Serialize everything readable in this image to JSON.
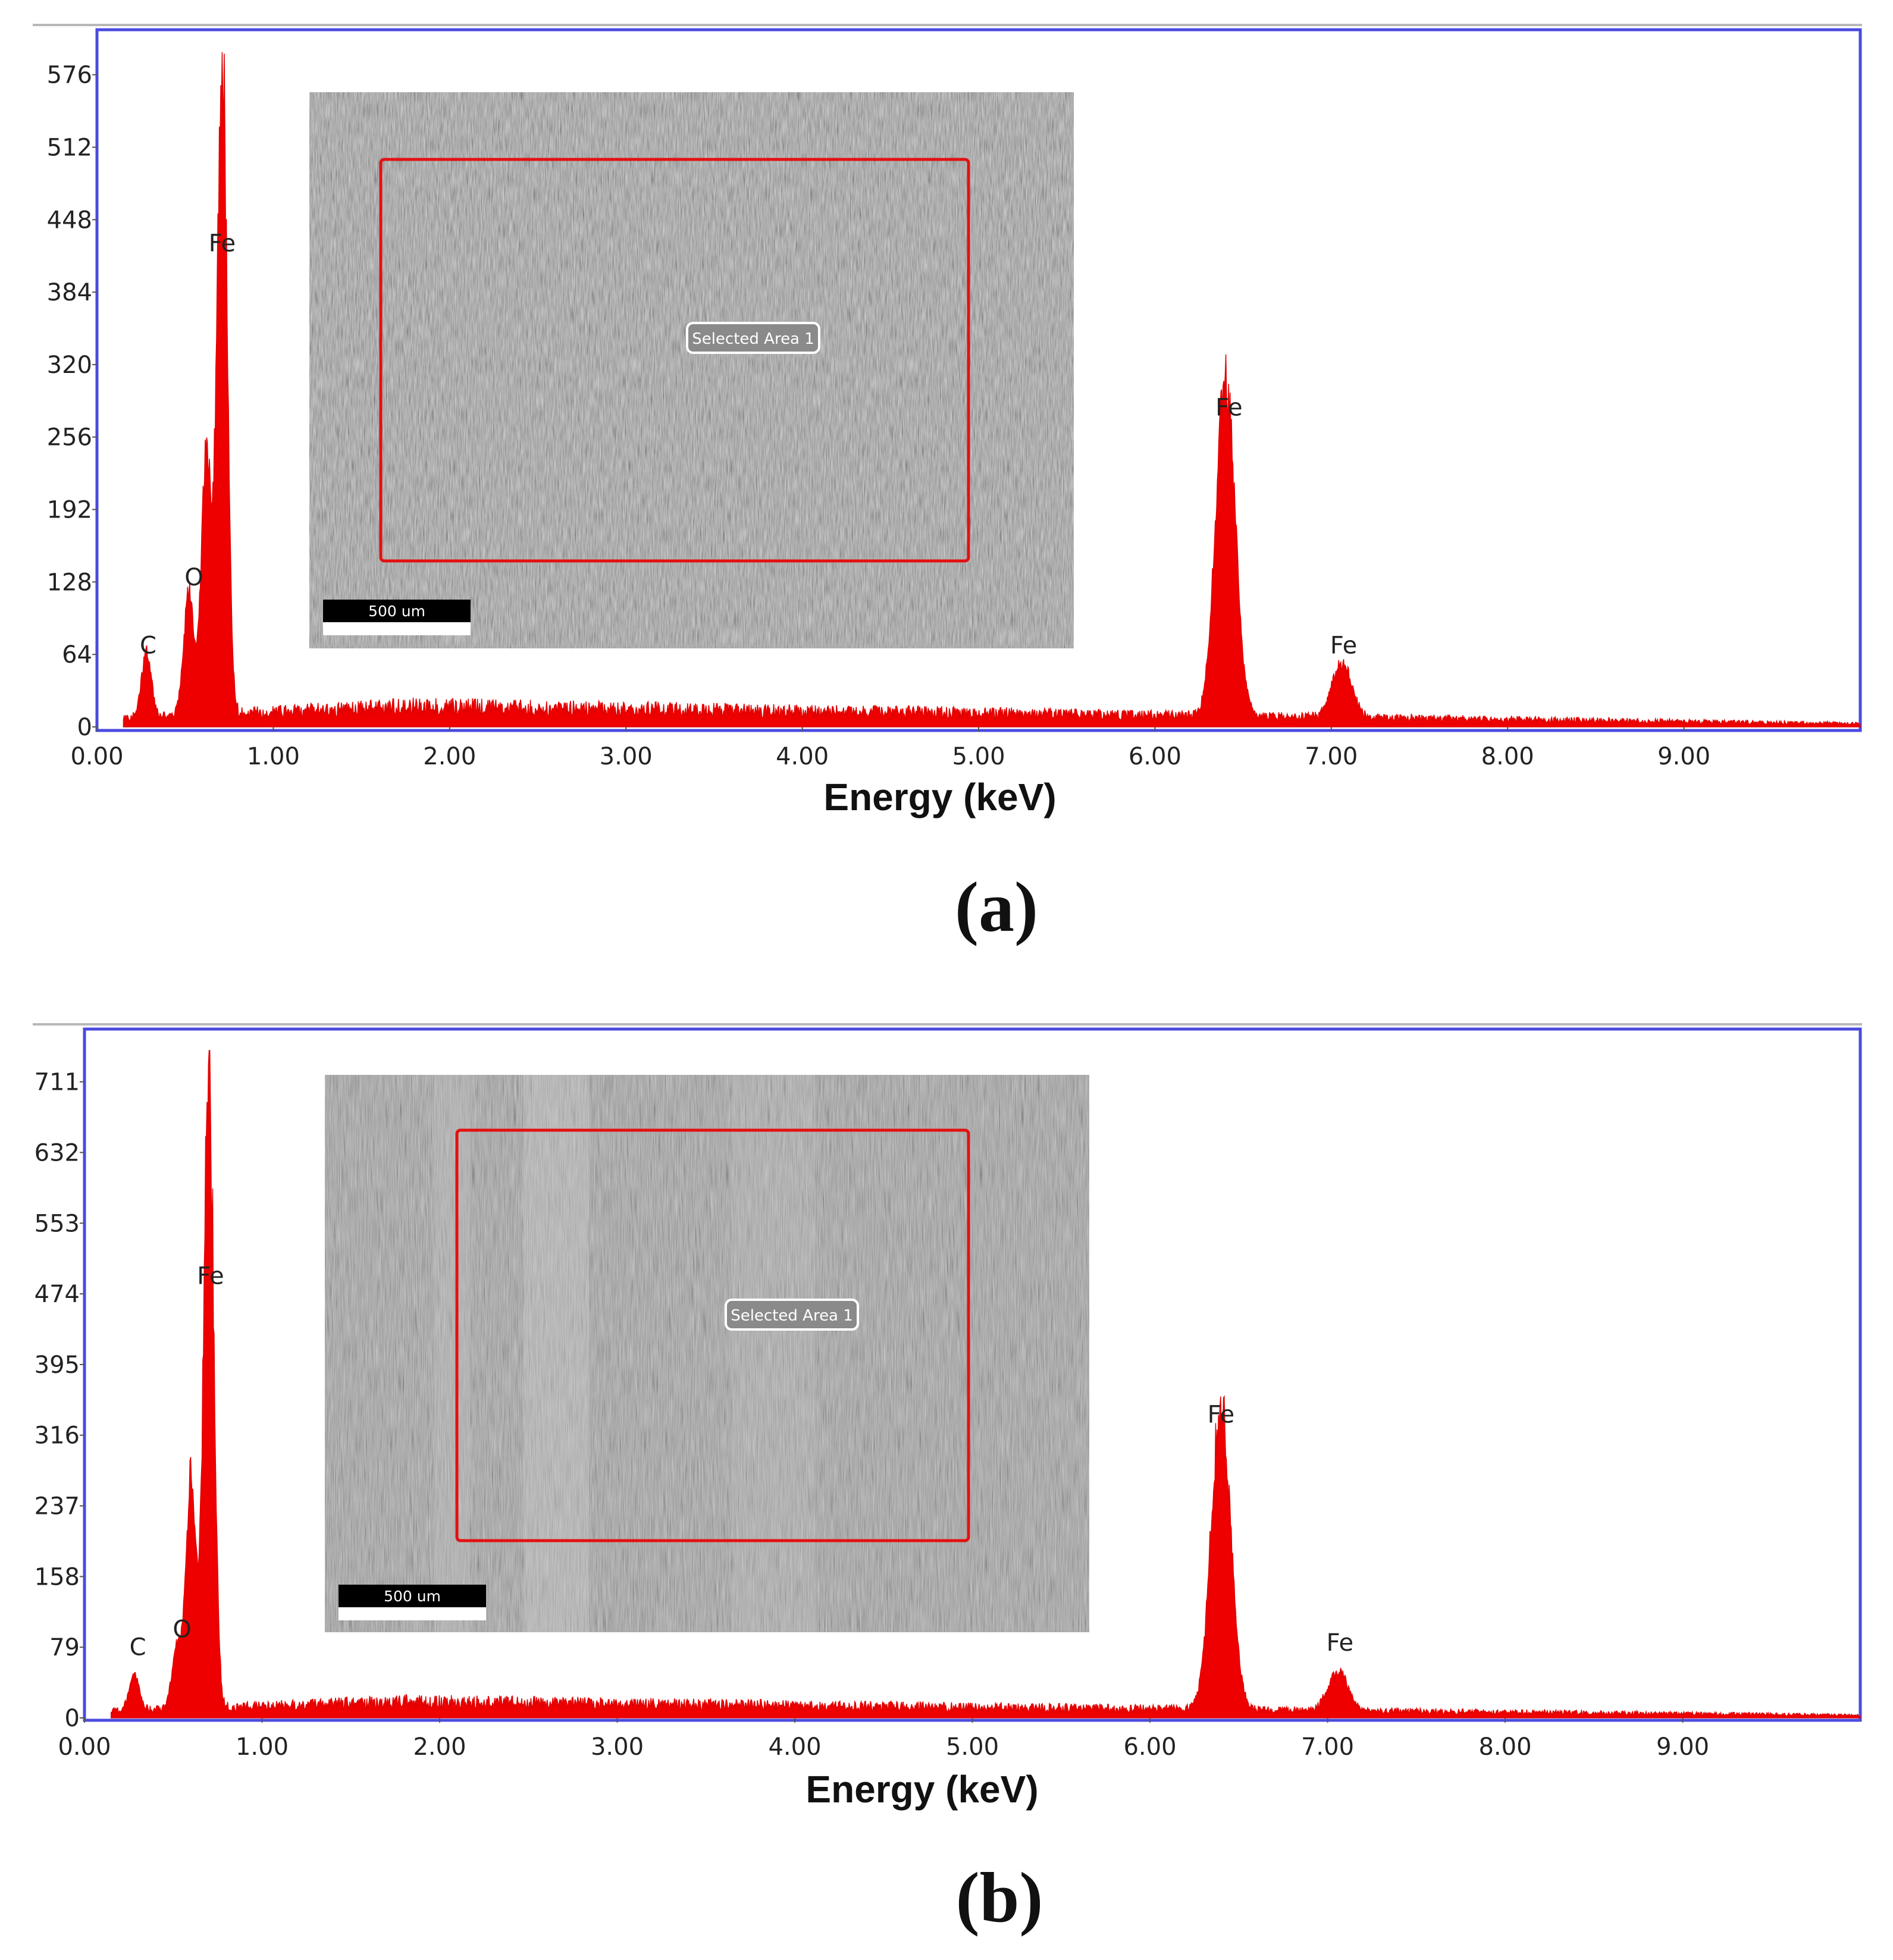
{
  "figure": {
    "panels": [
      {
        "label": "(a)"
      },
      {
        "label": "(b)"
      }
    ]
  },
  "chart_data": [
    {
      "type": "area",
      "panel": "(a)",
      "xlabel": "Energy (keV)",
      "ylabel": "",
      "xlim": [
        0,
        10
      ],
      "ylim": [
        0,
        600
      ],
      "x_ticks": [
        "0.00",
        "1.00",
        "2.00",
        "3.00",
        "4.00",
        "5.00",
        "6.00",
        "7.00",
        "8.00",
        "9.00"
      ],
      "y_ticks": [
        "0",
        "64",
        "128",
        "192",
        "256",
        "320",
        "384",
        "448",
        "512",
        "576"
      ],
      "baseline": {
        "start_x": 0.15,
        "start_y": 8,
        "mid_x": 1.8,
        "mid_y": 18,
        "end_x": 10,
        "end_y": 3
      },
      "peaks": [
        {
          "element": "C",
          "energy": 0.28,
          "counts": 55
        },
        {
          "element": "O",
          "energy": 0.52,
          "counts": 110
        },
        {
          "element": "Fe",
          "energy": 0.62,
          "counts": 235
        },
        {
          "element": "Fe",
          "energy": 0.71,
          "counts": 590
        },
        {
          "element": "Fe",
          "energy": 6.4,
          "counts": 292
        },
        {
          "element": "Fe",
          "energy": 7.06,
          "counts": 48
        }
      ],
      "labels": [
        {
          "text": "C",
          "energy": 0.29,
          "counts": 65
        },
        {
          "text": "O",
          "energy": 0.55,
          "counts": 125
        },
        {
          "text": "Fe",
          "energy": 0.71,
          "counts": 420
        },
        {
          "text": "Fe",
          "energy": 6.42,
          "counts": 275
        },
        {
          "text": "Fe",
          "energy": 7.07,
          "counts": 65
        }
      ],
      "inset": {
        "scale_bar": "500 um",
        "selection_label": "Selected Area 1"
      }
    },
    {
      "type": "area",
      "panel": "(b)",
      "xlabel": "Energy (keV)",
      "ylabel": "",
      "xlim": [
        0,
        10
      ],
      "ylim": [
        0,
        750
      ],
      "x_ticks": [
        "0.00",
        "1.00",
        "2.00",
        "3.00",
        "4.00",
        "5.00",
        "6.00",
        "7.00",
        "8.00",
        "9.00"
      ],
      "y_ticks": [
        "0",
        "79",
        "158",
        "237",
        "316",
        "395",
        "474",
        "553",
        "632",
        "711"
      ],
      "baseline": {
        "start_x": 0.15,
        "start_y": 8,
        "mid_x": 1.8,
        "mid_y": 18,
        "end_x": 10,
        "end_y": 3
      },
      "peaks": [
        {
          "element": "C",
          "energy": 0.28,
          "counts": 40
        },
        {
          "element": "O",
          "energy": 0.52,
          "counts": 70
        },
        {
          "element": "Fe",
          "energy": 0.6,
          "counts": 260
        },
        {
          "element": "Fe",
          "energy": 0.7,
          "counts": 725
        },
        {
          "element": "Fe",
          "energy": 6.4,
          "counts": 340
        },
        {
          "element": "Fe",
          "energy": 7.06,
          "counts": 45
        }
      ],
      "labels": [
        {
          "text": "C",
          "energy": 0.3,
          "counts": 70
        },
        {
          "text": "O",
          "energy": 0.55,
          "counts": 90
        },
        {
          "text": "Fe",
          "energy": 0.71,
          "counts": 485
        },
        {
          "text": "Fe",
          "energy": 6.4,
          "counts": 330
        },
        {
          "text": "Fe",
          "energy": 7.07,
          "counts": 75
        }
      ],
      "inset": {
        "scale_bar": "500 um",
        "selection_label": "Selected Area 1"
      }
    }
  ],
  "colors": {
    "spectrum": "#ee0000",
    "frame": "#4a4ae0",
    "selection": "#e41010",
    "axis_text": "#222222"
  }
}
